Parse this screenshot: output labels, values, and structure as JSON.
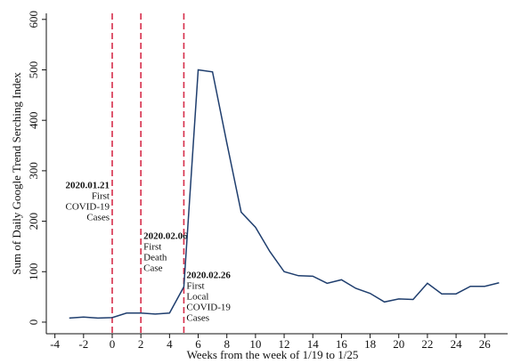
{
  "chart_data": {
    "type": "line",
    "x_label": "Weeks from the week of 1/19 to 1/25",
    "y_label": "Sum of Daily Google Trend Serching Index",
    "x": [
      -3,
      -2,
      -1,
      0,
      1,
      2,
      3,
      4,
      5,
      6,
      7,
      8,
      9,
      10,
      11,
      12,
      13,
      14,
      15,
      16,
      17,
      18,
      19,
      20,
      21,
      22,
      23,
      24,
      25,
      26,
      27
    ],
    "series": [
      {
        "color": "#1f3e6e",
        "values": [
          8,
          10,
          8,
          9,
          18,
          18,
          16,
          18,
          70,
          500,
          496,
          355,
          218,
          188,
          140,
          100,
          92,
          91,
          77,
          84,
          67,
          57,
          40,
          46,
          45,
          77,
          56,
          56,
          71,
          71,
          78
        ]
      }
    ],
    "xlim": [
      -4.6,
      27.6
    ],
    "ylim": [
      -23,
      612
    ],
    "xticks": [
      -4,
      -2,
      0,
      2,
      4,
      6,
      8,
      10,
      12,
      14,
      16,
      18,
      20,
      22,
      24,
      26
    ],
    "yticks": [
      0,
      100,
      200,
      300,
      400,
      500,
      600
    ],
    "annotations": [
      {
        "x": 0,
        "date": "2020.01.21",
        "lines": [
          "First",
          "COVID-19",
          "Cases"
        ]
      },
      {
        "x": 2,
        "date": "2020.02.06",
        "lines": [
          "First",
          "Death",
          "Case"
        ]
      },
      {
        "x": 5,
        "date": "2020.02.26",
        "lines": [
          "First",
          "Local",
          "COVID-19",
          "Cases"
        ]
      }
    ],
    "annotation_color": "#d62d4a"
  }
}
